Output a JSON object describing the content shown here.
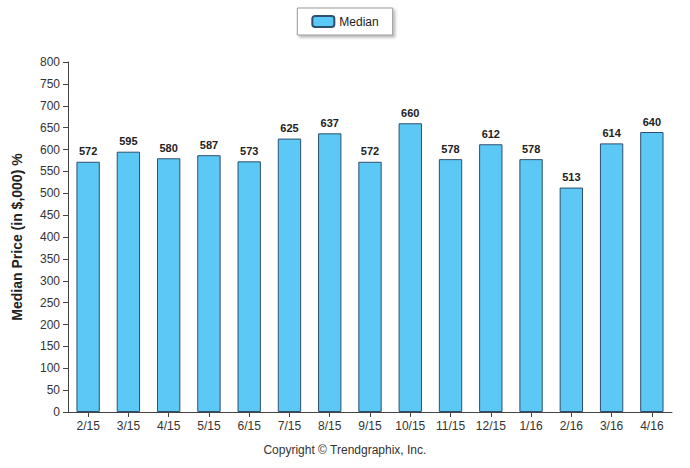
{
  "chart_data": {
    "type": "bar",
    "y_label": "Median Price (in $,000) %",
    "annotations": [
      "Copyright © Trendgraphix, Inc."
    ],
    "categories": [
      "2/15",
      "3/15",
      "4/15",
      "5/15",
      "6/15",
      "7/15",
      "8/15",
      "9/15",
      "10/15",
      "11/15",
      "12/15",
      "1/16",
      "2/16",
      "3/16",
      "4/16"
    ],
    "series": [
      {
        "name": "Median",
        "color": "#5bc8f5",
        "values": [
          572,
          595,
          580,
          587,
          573,
          625,
          637,
          572,
          660,
          578,
          612,
          578,
          513,
          614,
          640
        ]
      }
    ],
    "ylim": [
      0,
      800
    ],
    "yticks": [
      0,
      50,
      100,
      150,
      200,
      250,
      300,
      350,
      400,
      450,
      500,
      550,
      600,
      650,
      700,
      750,
      800
    ],
    "grid": false,
    "legend": "top",
    "data_labels": true
  }
}
